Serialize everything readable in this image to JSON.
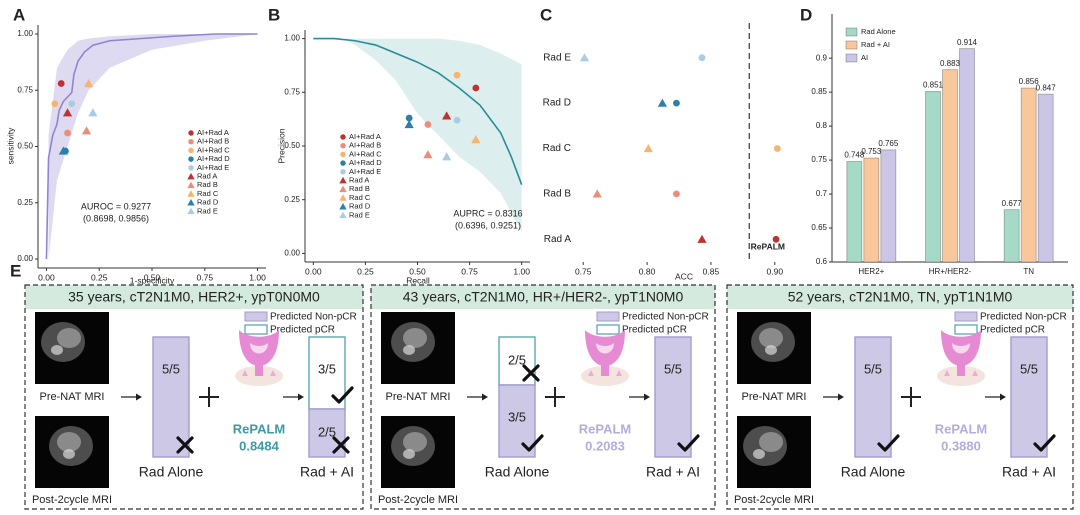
{
  "chart_data": [
    {
      "type": "line",
      "panel": "A",
      "xlabel": "1-specificity",
      "ylabel": "sensitivity",
      "xlim": [
        -0.04,
        1.04
      ],
      "ylim": [
        -0.04,
        1.04
      ],
      "xticks": [
        {
          "value": 0,
          "label": "0.00"
        },
        0.25,
        {
          "value": 0.5,
          "label": "0.50"
        },
        0.75,
        {
          "value": 1,
          "label": "1.00"
        }
      ],
      "yticks": [
        {
          "value": 0,
          "label": "0.00"
        },
        0.25,
        {
          "value": 0.5,
          "label": "0.50"
        },
        0.75,
        {
          "value": 1,
          "label": "1.00"
        }
      ],
      "curve": {
        "color": "#8f86cf",
        "x": [
          0,
          0.01,
          0.02,
          0.03,
          0.05,
          0.06,
          0.08,
          0.1,
          0.12,
          0.13,
          0.15,
          0.18,
          0.22,
          0.3,
          0.45,
          0.6,
          0.8,
          1
        ],
        "y": [
          0,
          0.45,
          0.5,
          0.55,
          0.6,
          0.66,
          0.7,
          0.72,
          0.74,
          0.82,
          0.88,
          0.92,
          0.95,
          0.97,
          0.98,
          0.99,
          1,
          1
        ]
      },
      "band": {
        "color": "#dedaf2",
        "x": [
          0.01,
          0.05,
          0.1,
          0.15,
          0.2,
          0.3,
          0.5,
          0.75,
          1
        ],
        "lower": [
          0,
          0.35,
          0.5,
          0.65,
          0.75,
          0.85,
          0.93,
          0.97,
          1
        ],
        "upper": [
          0.55,
          0.85,
          0.93,
          0.97,
          0.98,
          0.99,
          1,
          1,
          1
        ]
      },
      "series": [
        {
          "name": "AI+Rad A",
          "color": "#c0322f",
          "marker": "circle",
          "x": [
            0.07
          ],
          "values": [
            0.78
          ]
        },
        {
          "name": "AI+Rad B",
          "color": "#ee8c78",
          "marker": "circle",
          "x": [
            0.1
          ],
          "values": [
            0.56
          ]
        },
        {
          "name": "AI+Rad C",
          "color": "#f5b56e",
          "marker": "circle",
          "x": [
            0.04
          ],
          "values": [
            0.69
          ]
        },
        {
          "name": "AI+Rad D",
          "color": "#2c7fab",
          "marker": "circle",
          "x": [
            0.09
          ],
          "values": [
            0.48
          ]
        },
        {
          "name": "AI+Rad E",
          "color": "#a8cce2",
          "marker": "circle",
          "x": [
            0.12
          ],
          "values": [
            0.69
          ]
        },
        {
          "name": "Rad A",
          "color": "#c0322f",
          "marker": "triangle",
          "x": [
            0.1
          ],
          "values": [
            0.65
          ]
        },
        {
          "name": "Rad B",
          "color": "#ee8c78",
          "marker": "triangle",
          "x": [
            0.19
          ],
          "values": [
            0.57
          ]
        },
        {
          "name": "Rad C",
          "color": "#f5b56e",
          "marker": "triangle",
          "x": [
            0.2
          ],
          "values": [
            0.78
          ]
        },
        {
          "name": "Rad D",
          "color": "#2c7fab",
          "marker": "triangle",
          "x": [
            0.08
          ],
          "values": [
            0.48
          ]
        },
        {
          "name": "Rad E",
          "color": "#a8cce2",
          "marker": "triangle",
          "x": [
            0.22
          ],
          "values": [
            0.65
          ]
        }
      ],
      "annotations": [
        "AUROC = 0.9277",
        "(0.8698, 0.9856)"
      ]
    },
    {
      "type": "line",
      "panel": "B",
      "xlabel": "Recall",
      "ylabel": "Precision",
      "xlim": [
        -0.04,
        1.04
      ],
      "ylim": [
        -0.04,
        1.04
      ],
      "xticks": [
        {
          "value": 0,
          "label": "0.00"
        },
        0.25,
        {
          "value": 0.5,
          "label": "0.50"
        },
        0.75,
        {
          "value": 1,
          "label": "1.00"
        }
      ],
      "yticks": [
        {
          "value": 0,
          "label": "0.00"
        },
        0.25,
        {
          "value": 0.5,
          "label": "0.50"
        },
        0.75,
        {
          "value": 1,
          "label": "1.00"
        }
      ],
      "curve": {
        "color": "#2a8c95",
        "x": [
          0,
          0.1,
          0.2,
          0.3,
          0.4,
          0.5,
          0.6,
          0.7,
          0.8,
          0.9,
          0.95,
          1
        ],
        "y": [
          1,
          1,
          0.99,
          0.97,
          0.93,
          0.89,
          0.84,
          0.77,
          0.69,
          0.56,
          0.45,
          0.32
        ]
      },
      "band": {
        "color": "#dcefee",
        "x": [
          0.15,
          0.2,
          0.3,
          0.4,
          0.5,
          0.6,
          0.7,
          0.8,
          0.9,
          1
        ],
        "lower": [
          1,
          0.97,
          0.9,
          0.8,
          0.65,
          0.55,
          0.45,
          0.38,
          0.28,
          0.1
        ],
        "upper": [
          1,
          1,
          1,
          1,
          1,
          1,
          0.99,
          0.97,
          0.93,
          0.88
        ]
      },
      "series": [
        {
          "name": "AI+Rad A",
          "color": "#c0322f",
          "marker": "circle",
          "x": [
            0.78
          ],
          "values": [
            0.77
          ]
        },
        {
          "name": "AI+Rad B",
          "color": "#ee8c78",
          "marker": "circle",
          "x": [
            0.55
          ],
          "values": [
            0.6
          ]
        },
        {
          "name": "AI+Rad C",
          "color": "#f5b56e",
          "marker": "circle",
          "x": [
            0.69
          ],
          "values": [
            0.83
          ]
        },
        {
          "name": "AI+Rad D",
          "color": "#2c7fab",
          "marker": "circle",
          "x": [
            0.46
          ],
          "values": [
            0.63
          ]
        },
        {
          "name": "AI+Rad E",
          "color": "#a8cce2",
          "marker": "circle",
          "x": [
            0.69
          ],
          "values": [
            0.62
          ]
        },
        {
          "name": "Rad A",
          "color": "#c0322f",
          "marker": "triangle",
          "x": [
            0.64
          ],
          "values": [
            0.64
          ]
        },
        {
          "name": "Rad B",
          "color": "#ee8c78",
          "marker": "triangle",
          "x": [
            0.55
          ],
          "values": [
            0.46
          ]
        },
        {
          "name": "Rad C",
          "color": "#f5b56e",
          "marker": "triangle",
          "x": [
            0.78
          ],
          "values": [
            0.53
          ]
        },
        {
          "name": "Rad D",
          "color": "#2c7fab",
          "marker": "triangle",
          "x": [
            0.46
          ],
          "values": [
            0.6
          ]
        },
        {
          "name": "Rad E",
          "color": "#a8cce2",
          "marker": "triangle",
          "x": [
            0.64
          ],
          "values": [
            0.45
          ]
        }
      ],
      "annotations": [
        "AUPRC = 0.8316",
        "(0.6396, 0.9251)"
      ]
    },
    {
      "type": "dot",
      "panel": "C",
      "xlabel": "ACC",
      "xlim": [
        0.742,
        0.908
      ],
      "xticks": [
        0.75,
        {
          "value": 0.8,
          "label": "0.80"
        },
        0.85,
        {
          "value": 0.9,
          "label": "0.90"
        }
      ],
      "categories": [
        "Rad E",
        "Rad D",
        "Rad C",
        "Rad B",
        "Rad A"
      ],
      "colors": [
        "#a8cce2",
        "#2c7fab",
        "#f5b56e",
        "#ee8c78",
        "#c0322f"
      ],
      "series": [
        {
          "marker": "triangle",
          "values": [
            0.751,
            0.812,
            0.801,
            0.761,
            0.843
          ]
        },
        {
          "marker": "circle",
          "values": [
            0.843,
            0.823,
            0.902,
            0.823,
            0.901
          ]
        }
      ],
      "refline": 0.88,
      "refline_label": "RePALM"
    },
    {
      "type": "bar",
      "panel": "D",
      "legend": "top-left",
      "ylim": [
        0.6,
        0.965
      ],
      "yticks": [
        0.6,
        0.65,
        0.7,
        0.75,
        0.8,
        0.85,
        0.9
      ],
      "categories": [
        "HER2+",
        "HR+/HER2-",
        "TN"
      ],
      "series": [
        {
          "name": "Rad Alone",
          "color": "#a7dac6",
          "values": [
            0.748,
            0.851,
            0.677
          ]
        },
        {
          "name": "Rad + AI",
          "color": "#f8c79c",
          "values": [
            0.753,
            0.883,
            0.856
          ]
        },
        {
          "name": "AI",
          "color": "#cbc5e6",
          "values": [
            0.765,
            0.914,
            0.847
          ]
        }
      ]
    }
  ],
  "panel_e": {
    "label": "E",
    "legend": {
      "non_pcr": "Predicted Non-pCR",
      "pcr": "Predicted pCR"
    },
    "cases": [
      {
        "title": "35 years, cT2N1M0, HER2+, ypT0N0M0",
        "pre_label": "Pre-NAT MRI",
        "post_label": "Post-2cycle MRI",
        "rad_alone": {
          "non_pcr": "5/5",
          "label": "Rad Alone"
        },
        "model": {
          "name": "RePALM",
          "score": "0.8484"
        },
        "rad_ai": {
          "pcr": "3/5",
          "non_pcr": "2/5",
          "label": "Rad + AI"
        }
      },
      {
        "title": "43 years, cT2N1M0, HR+/HER2-, ypT1N0M0",
        "pre_label": "Pre-NAT MRI",
        "post_label": "Post-2cycle MRI",
        "rad_alone": {
          "pcr": "2/5",
          "non_pcr": "3/5",
          "label": "Rad Alone"
        },
        "model": {
          "name": "RePALM",
          "score": "0.2083"
        },
        "rad_ai": {
          "non_pcr": "5/5",
          "label": "Rad + AI"
        }
      },
      {
        "title": "52 years, cT2N1M0, TN, ypT1N1M0",
        "pre_label": "Pre-NAT MRI",
        "post_label": "Post-2cycle MRI",
        "rad_alone": {
          "non_pcr": "5/5",
          "label": "Rad Alone"
        },
        "model": {
          "name": "RePALM",
          "score": "0.3880"
        },
        "rad_ai": {
          "non_pcr": "5/5",
          "label": "Rad + AI"
        }
      }
    ]
  }
}
